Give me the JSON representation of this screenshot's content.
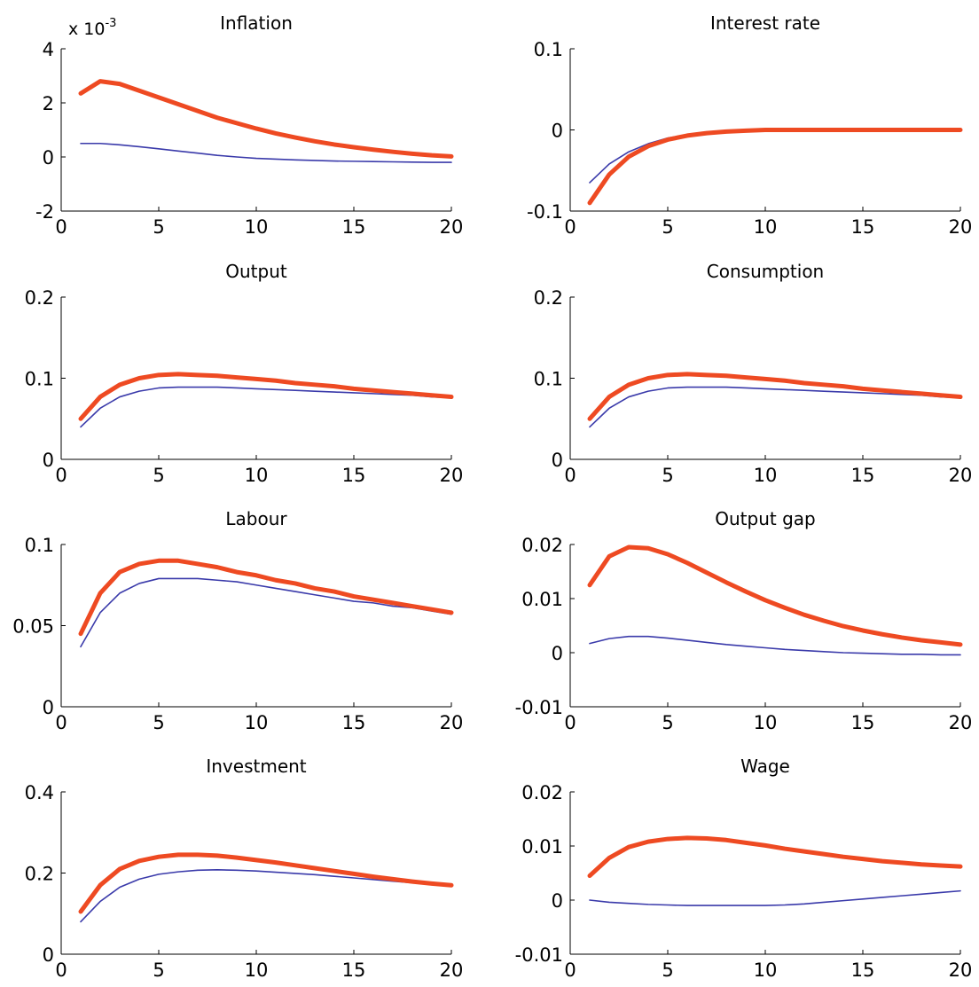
{
  "figure": {
    "colors": {
      "thick": "#ee4a22",
      "thin": "#3a3aaa"
    },
    "x_ticks": [
      0,
      5,
      10,
      15,
      20
    ]
  },
  "chart_data": [
    {
      "type": "line",
      "title": "Inflation",
      "y_multiplier_label": "x 10",
      "y_multiplier_exponent": "-3",
      "x": [
        1,
        2,
        3,
        4,
        5,
        6,
        7,
        8,
        9,
        10,
        11,
        12,
        13,
        14,
        15,
        16,
        17,
        18,
        19,
        20
      ],
      "xlim": [
        0,
        20
      ],
      "ylim": [
        -2,
        4
      ],
      "y_ticks": [
        -2,
        0,
        2,
        4
      ],
      "y_tick_labels": [
        "-2",
        "0",
        "2",
        "4"
      ],
      "series": [
        {
          "style": "thick",
          "values": [
            2.35,
            2.8,
            2.7,
            2.45,
            2.2,
            1.95,
            1.7,
            1.45,
            1.25,
            1.05,
            0.87,
            0.72,
            0.58,
            0.46,
            0.36,
            0.27,
            0.19,
            0.12,
            0.06,
            0.02
          ]
        },
        {
          "style": "thin",
          "values": [
            0.5,
            0.5,
            0.45,
            0.38,
            0.3,
            0.22,
            0.14,
            0.06,
            0.0,
            -0.05,
            -0.08,
            -0.11,
            -0.13,
            -0.15,
            -0.16,
            -0.17,
            -0.18,
            -0.19,
            -0.2,
            -0.2
          ]
        }
      ]
    },
    {
      "type": "line",
      "title": "Interest rate",
      "x": [
        1,
        2,
        3,
        4,
        5,
        6,
        7,
        8,
        9,
        10,
        11,
        12,
        13,
        14,
        15,
        16,
        17,
        18,
        19,
        20
      ],
      "xlim": [
        0,
        20
      ],
      "ylim": [
        -0.1,
        0.1
      ],
      "y_ticks": [
        -0.1,
        0,
        0.1
      ],
      "y_tick_labels": [
        "-0.1",
        "0",
        "0.1"
      ],
      "series": [
        {
          "style": "thick",
          "values": [
            -0.09,
            -0.055,
            -0.033,
            -0.02,
            -0.012,
            -0.007,
            -0.004,
            -0.002,
            -0.001,
            0,
            0,
            0,
            0,
            0,
            0,
            0,
            0,
            0,
            0,
            0
          ]
        },
        {
          "style": "thin",
          "values": [
            -0.065,
            -0.042,
            -0.027,
            -0.017,
            -0.01,
            -0.006,
            -0.003,
            -0.002,
            -0.001,
            0,
            0,
            0,
            0,
            0,
            0,
            0,
            0,
            0,
            0,
            0
          ]
        }
      ]
    },
    {
      "type": "line",
      "title": "Output",
      "x": [
        1,
        2,
        3,
        4,
        5,
        6,
        7,
        8,
        9,
        10,
        11,
        12,
        13,
        14,
        15,
        16,
        17,
        18,
        19,
        20
      ],
      "xlim": [
        0,
        20
      ],
      "ylim": [
        0,
        0.2
      ],
      "y_ticks": [
        0,
        0.1,
        0.2
      ],
      "y_tick_labels": [
        "0",
        "0.1",
        "0.2"
      ],
      "series": [
        {
          "style": "thick",
          "values": [
            0.05,
            0.077,
            0.092,
            0.1,
            0.104,
            0.105,
            0.104,
            0.103,
            0.101,
            0.099,
            0.097,
            0.094,
            0.092,
            0.09,
            0.087,
            0.085,
            0.083,
            0.081,
            0.079,
            0.077
          ]
        },
        {
          "style": "thin",
          "values": [
            0.04,
            0.063,
            0.077,
            0.084,
            0.088,
            0.089,
            0.089,
            0.089,
            0.088,
            0.087,
            0.086,
            0.085,
            0.084,
            0.083,
            0.082,
            0.081,
            0.08,
            0.079,
            0.077,
            0.076
          ]
        }
      ]
    },
    {
      "type": "line",
      "title": "Consumption",
      "x": [
        1,
        2,
        3,
        4,
        5,
        6,
        7,
        8,
        9,
        10,
        11,
        12,
        13,
        14,
        15,
        16,
        17,
        18,
        19,
        20
      ],
      "xlim": [
        0,
        20
      ],
      "ylim": [
        0,
        0.2
      ],
      "y_ticks": [
        0,
        0.1,
        0.2
      ],
      "y_tick_labels": [
        "0",
        "0.1",
        "0.2"
      ],
      "series": [
        {
          "style": "thick",
          "values": [
            0.05,
            0.077,
            0.092,
            0.1,
            0.104,
            0.105,
            0.104,
            0.103,
            0.101,
            0.099,
            0.097,
            0.094,
            0.092,
            0.09,
            0.087,
            0.085,
            0.083,
            0.081,
            0.079,
            0.077
          ]
        },
        {
          "style": "thin",
          "values": [
            0.04,
            0.063,
            0.077,
            0.084,
            0.088,
            0.089,
            0.089,
            0.089,
            0.088,
            0.087,
            0.086,
            0.085,
            0.084,
            0.083,
            0.082,
            0.081,
            0.08,
            0.079,
            0.077,
            0.076
          ]
        }
      ]
    },
    {
      "type": "line",
      "title": "Labour",
      "x": [
        1,
        2,
        3,
        4,
        5,
        6,
        7,
        8,
        9,
        10,
        11,
        12,
        13,
        14,
        15,
        16,
        17,
        18,
        19,
        20
      ],
      "xlim": [
        0,
        20
      ],
      "ylim": [
        0,
        0.1
      ],
      "y_ticks": [
        0,
        0.05,
        0.1
      ],
      "y_tick_labels": [
        "0",
        "0.05",
        "0.1"
      ],
      "series": [
        {
          "style": "thick",
          "values": [
            0.045,
            0.07,
            0.083,
            0.088,
            0.09,
            0.09,
            0.088,
            0.086,
            0.083,
            0.081,
            0.078,
            0.076,
            0.073,
            0.071,
            0.068,
            0.066,
            0.064,
            0.062,
            0.06,
            0.058
          ]
        },
        {
          "style": "thin",
          "values": [
            0.037,
            0.058,
            0.07,
            0.076,
            0.079,
            0.079,
            0.079,
            0.078,
            0.077,
            0.075,
            0.073,
            0.071,
            0.069,
            0.067,
            0.065,
            0.064,
            0.062,
            0.061,
            0.059,
            0.057
          ]
        }
      ]
    },
    {
      "type": "line",
      "title": "Output gap",
      "x": [
        1,
        2,
        3,
        4,
        5,
        6,
        7,
        8,
        9,
        10,
        11,
        12,
        13,
        14,
        15,
        16,
        17,
        18,
        19,
        20
      ],
      "xlim": [
        0,
        20
      ],
      "ylim": [
        -0.01,
        0.02
      ],
      "y_ticks": [
        -0.01,
        0,
        0.01,
        0.02
      ],
      "y_tick_labels": [
        "-0.01",
        "0",
        "0.01",
        "0.02"
      ],
      "series": [
        {
          "style": "thick",
          "values": [
            0.0125,
            0.0178,
            0.0195,
            0.0193,
            0.0182,
            0.0166,
            0.0148,
            0.013,
            0.0113,
            0.0097,
            0.0083,
            0.007,
            0.0059,
            0.0049,
            0.0041,
            0.0034,
            0.0028,
            0.0023,
            0.0019,
            0.0015
          ]
        },
        {
          "style": "thin",
          "values": [
            0.0017,
            0.0026,
            0.003,
            0.003,
            0.0027,
            0.0023,
            0.0019,
            0.0015,
            0.0012,
            0.0009,
            0.0006,
            0.0004,
            0.0002,
            0.0,
            -0.0001,
            -0.0002,
            -0.0003,
            -0.0003,
            -0.0004,
            -0.0004
          ]
        }
      ]
    },
    {
      "type": "line",
      "title": "Investment",
      "x": [
        1,
        2,
        3,
        4,
        5,
        6,
        7,
        8,
        9,
        10,
        11,
        12,
        13,
        14,
        15,
        16,
        17,
        18,
        19,
        20
      ],
      "xlim": [
        0,
        20
      ],
      "ylim": [
        0,
        0.4
      ],
      "y_ticks": [
        0,
        0.2,
        0.4
      ],
      "y_tick_labels": [
        "0",
        "0.2",
        "0.4"
      ],
      "series": [
        {
          "style": "thick",
          "values": [
            0.105,
            0.17,
            0.21,
            0.23,
            0.24,
            0.245,
            0.245,
            0.243,
            0.238,
            0.232,
            0.226,
            0.219,
            0.212,
            0.205,
            0.198,
            0.191,
            0.185,
            0.179,
            0.174,
            0.17
          ]
        },
        {
          "style": "thin",
          "values": [
            0.08,
            0.13,
            0.165,
            0.185,
            0.197,
            0.203,
            0.207,
            0.208,
            0.207,
            0.205,
            0.202,
            0.199,
            0.196,
            0.192,
            0.188,
            0.184,
            0.18,
            0.176,
            0.172,
            0.168
          ]
        }
      ]
    },
    {
      "type": "line",
      "title": "Wage",
      "x": [
        1,
        2,
        3,
        4,
        5,
        6,
        7,
        8,
        9,
        10,
        11,
        12,
        13,
        14,
        15,
        16,
        17,
        18,
        19,
        20
      ],
      "xlim": [
        0,
        20
      ],
      "ylim": [
        -0.01,
        0.02
      ],
      "y_ticks": [
        -0.01,
        0,
        0.01,
        0.02
      ],
      "y_tick_labels": [
        "-0.01",
        "0",
        "0.01",
        "0.02"
      ],
      "series": [
        {
          "style": "thick",
          "values": [
            0.0045,
            0.0078,
            0.0098,
            0.0108,
            0.0113,
            0.0115,
            0.0114,
            0.0111,
            0.0106,
            0.0101,
            0.0095,
            0.009,
            0.0085,
            0.008,
            0.0076,
            0.0072,
            0.0069,
            0.0066,
            0.0064,
            0.0062
          ]
        },
        {
          "style": "thin",
          "values": [
            0.0,
            -0.0004,
            -0.0006,
            -0.0008,
            -0.0009,
            -0.001,
            -0.001,
            -0.001,
            -0.001,
            -0.001,
            -0.0009,
            -0.0007,
            -0.0004,
            -0.0001,
            0.0002,
            0.0005,
            0.0008,
            0.0011,
            0.0014,
            0.0017
          ]
        }
      ]
    }
  ]
}
